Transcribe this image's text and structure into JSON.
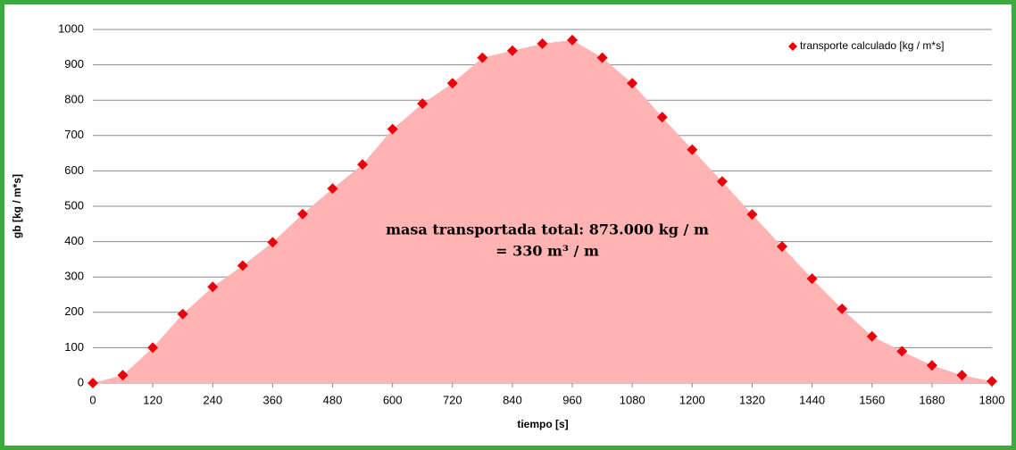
{
  "chart_data": {
    "type": "scatter",
    "xlabel": "tiempo [s]",
    "ylabel": "gb [kg / m*s]",
    "annotations": [
      "masa transportada total: 873.000 kg / m",
      "= 330 m³ / m"
    ],
    "x": [
      0,
      60,
      120,
      180,
      240,
      300,
      360,
      420,
      480,
      540,
      600,
      660,
      720,
      780,
      840,
      900,
      960,
      1020,
      1080,
      1140,
      1200,
      1260,
      1320,
      1380,
      1440,
      1500,
      1560,
      1620,
      1680,
      1740,
      1800
    ],
    "series": [
      {
        "name": "transporte calculado [kg / m*s]",
        "color": "#e8000b",
        "area_color": "#ffb3b3",
        "values": [
          0,
          22,
          100,
          195,
          272,
          332,
          398,
          478,
          550,
          618,
          718,
          790,
          848,
          920,
          940,
          960,
          970,
          920,
          848,
          752,
          660,
          570,
          477,
          386,
          295,
          210,
          132,
          90,
          50,
          22,
          5
        ]
      }
    ],
    "xlim": [
      0,
      1800
    ],
    "xticks": [
      0,
      120,
      240,
      360,
      480,
      600,
      720,
      840,
      960,
      1080,
      1200,
      1320,
      1440,
      1560,
      1680,
      1800
    ],
    "ylim": [
      0,
      1000
    ],
    "yticks": [
      0,
      100,
      200,
      300,
      400,
      500,
      600,
      700,
      800,
      900,
      1000
    ],
    "grid": true,
    "legend": "upper right"
  }
}
